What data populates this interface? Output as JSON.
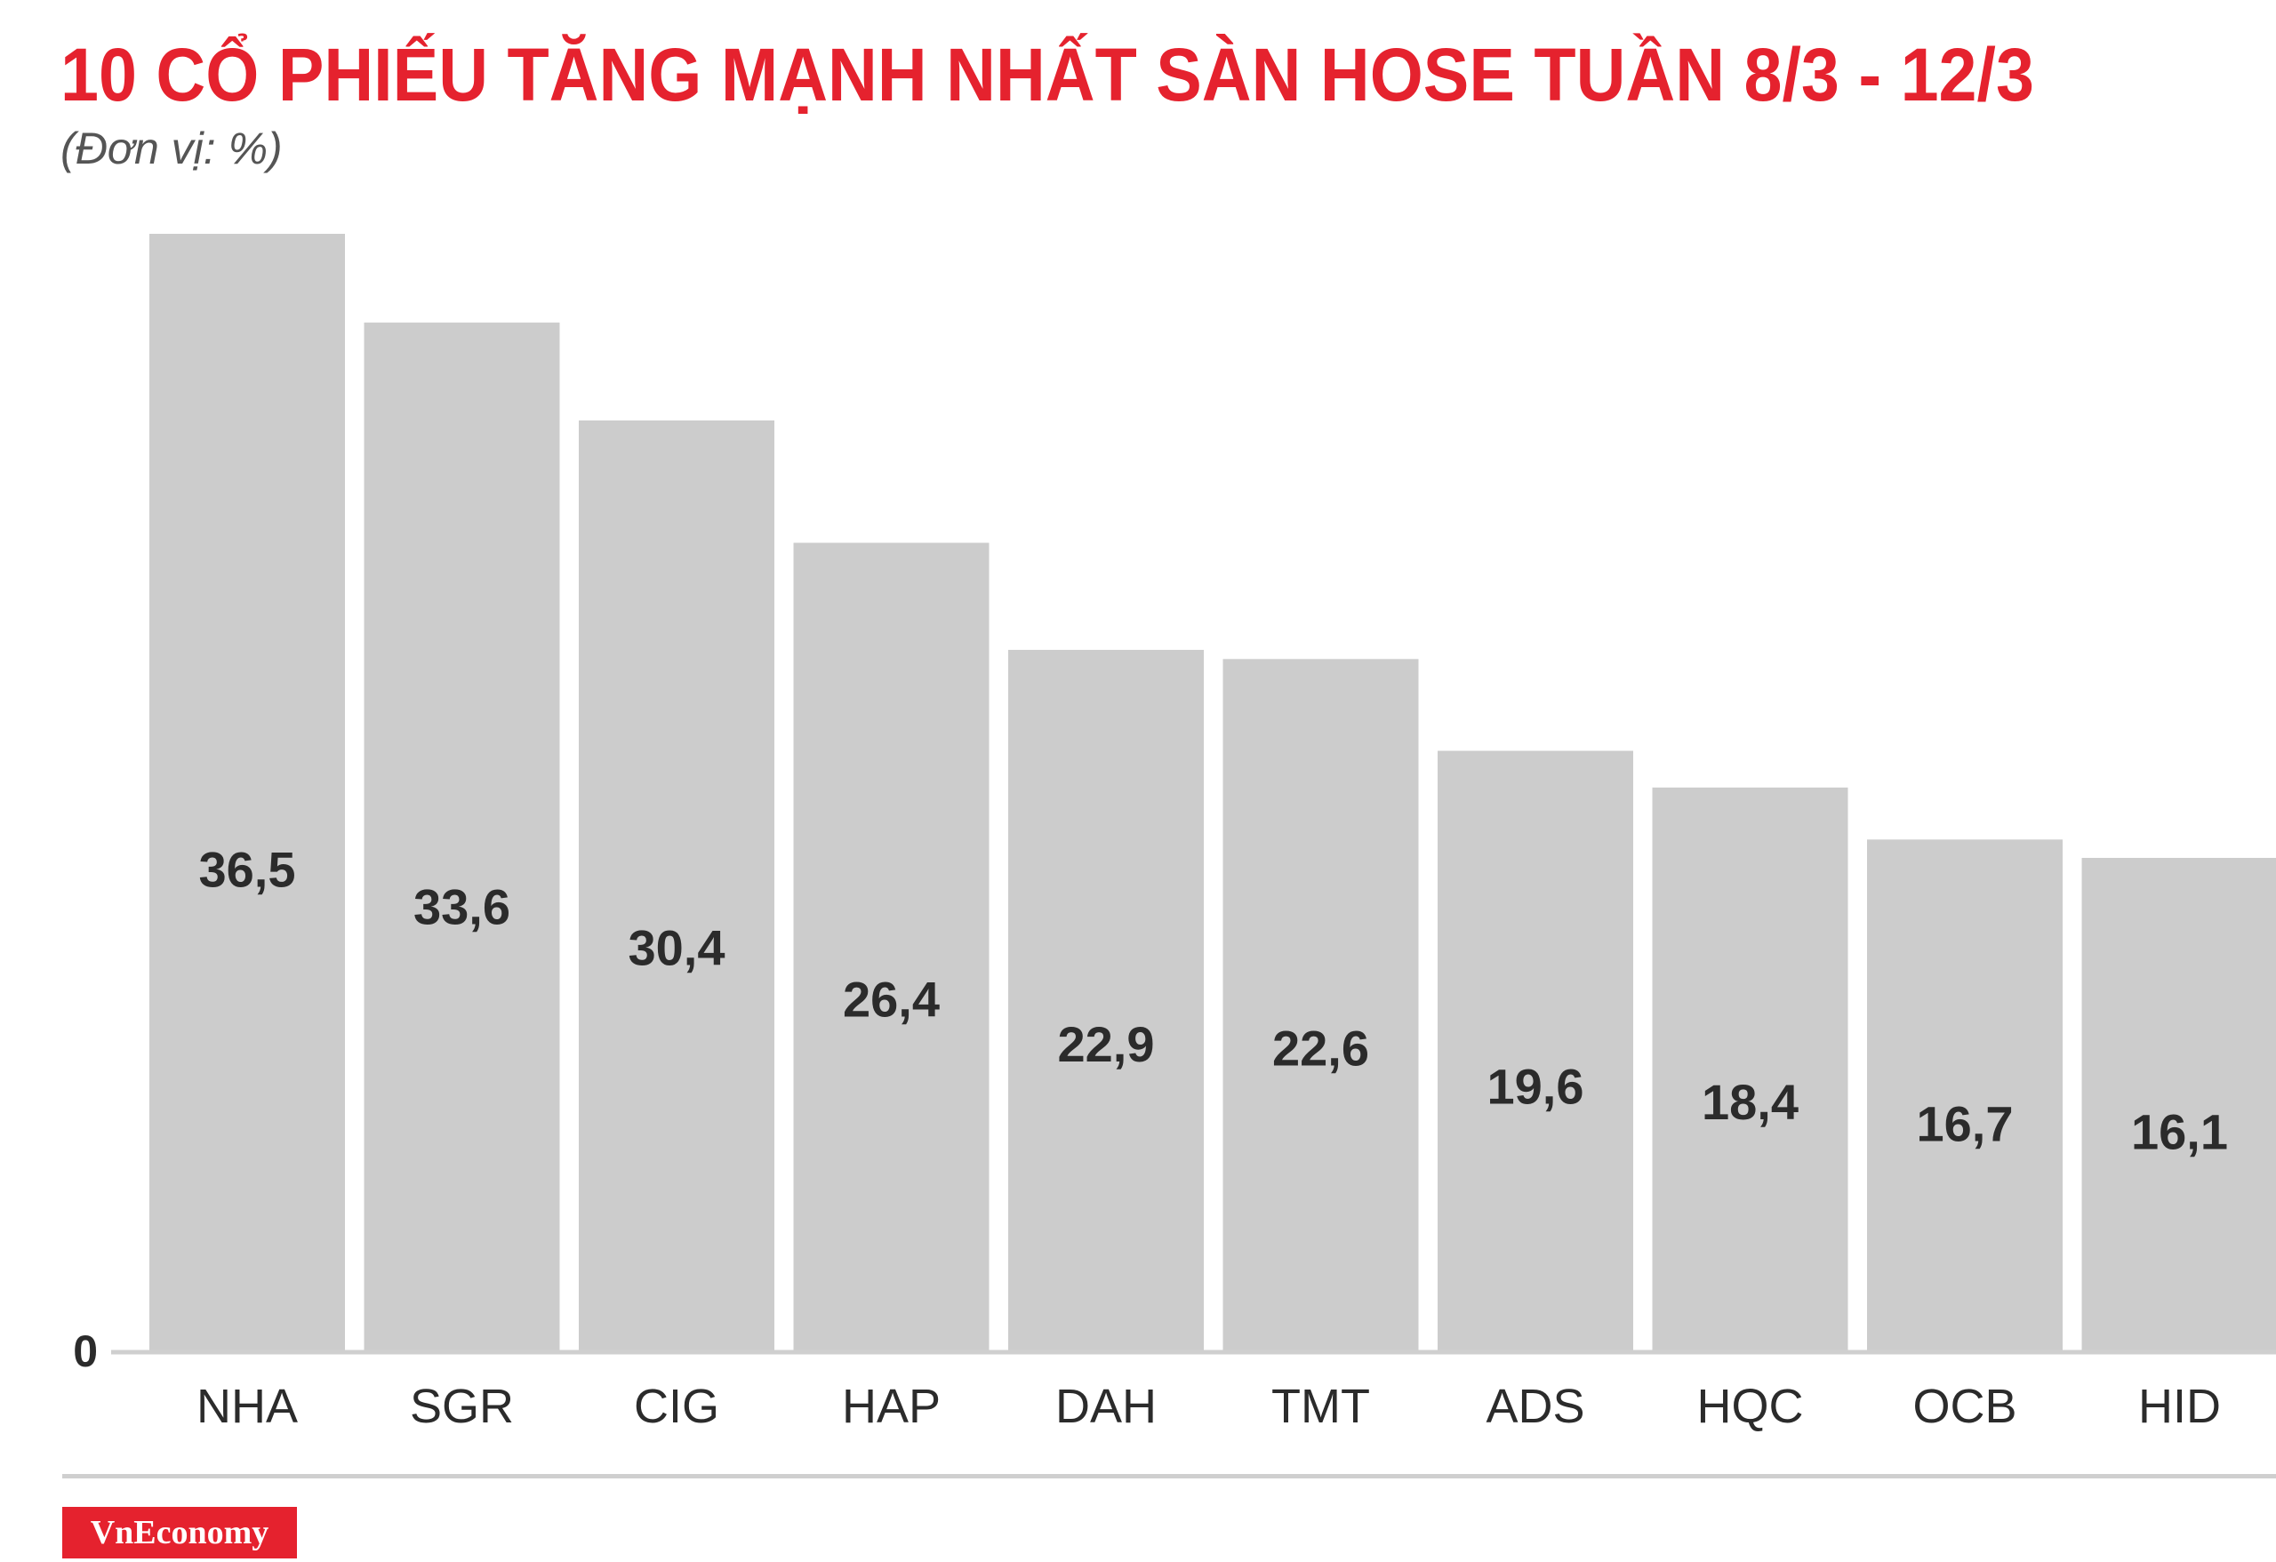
{
  "title": "10 CỔ PHIẾU TĂNG MẠNH NHẤT SÀN HOSE TUẦN 8/3 - 12/3",
  "subtitle": "(Đơn vị: %)",
  "brand": "VnEconomy",
  "colors": {
    "title": "#e5222e",
    "bar": "#cccccc",
    "value_text": "#2b2b2b",
    "axis": "#cfcfcf",
    "brand_bg": "#e5222e"
  },
  "chart_data": {
    "type": "bar",
    "title": "10 CỔ PHIẾU TĂNG MẠNH NHẤT SÀN HOSE TUẦN 8/3 - 12/3",
    "subtitle": "(Đơn vị: %)",
    "categories": [
      "NHA",
      "SGR",
      "CIG",
      "HAP",
      "DAH",
      "TMT",
      "ADS",
      "HQC",
      "OCB",
      "HID"
    ],
    "values": [
      36.5,
      33.6,
      30.4,
      26.4,
      22.9,
      22.6,
      19.6,
      18.4,
      16.7,
      16.1
    ],
    "value_labels": [
      "36,5",
      "33,6",
      "30,4",
      "26,4",
      "22,9",
      "22,6",
      "19,6",
      "18,4",
      "16,7",
      "16,1"
    ],
    "y_tick_label": "0",
    "ylim": [
      0,
      36.5
    ],
    "xlabel": "",
    "ylabel": "",
    "grid": false,
    "legend": "none"
  }
}
